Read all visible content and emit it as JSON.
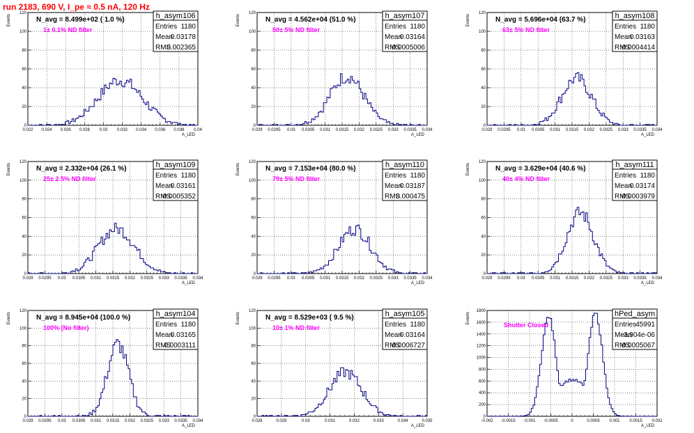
{
  "page_title": "run 2183,   690 V, I_pe ≈ 0.5 nA, 120 Hz",
  "colors": {
    "title": "#ff0000",
    "line": "#000080",
    "filter_label": "#ff00ff",
    "grid": "#000000"
  },
  "chart_data": [
    {
      "type": "bar",
      "name": "h_asym106",
      "navg_label": "N_avg = 8.499e+02 ( 1.0 %)",
      "filter_label": "1± 0.1% ND filter",
      "stats": [
        [
          "Entries",
          "1180"
        ],
        [
          "Mean",
          "0.03178"
        ],
        [
          "RMS",
          "0.002365"
        ]
      ],
      "xlabel": "A_LED",
      "ylabel": "Events",
      "xlim": [
        0.022,
        0.04
      ],
      "ylim": [
        0,
        120
      ],
      "xticks": [
        "0.022",
        "0.024",
        "0.026",
        "0.028",
        "0.03",
        "0.032",
        "0.034",
        "0.036",
        "0.038",
        "0.04"
      ],
      "yticks": [
        "0",
        "20",
        "40",
        "60",
        "80",
        "100",
        "120"
      ],
      "mean": 0.03178,
      "rms": 0.002365,
      "peak": 48,
      "grid": true
    },
    {
      "type": "bar",
      "name": "h_asym107",
      "navg_label": "N_avg = 4.562e+04 (51.0 %)",
      "filter_label": "50± 5% ND filter",
      "stats": [
        [
          "Entries",
          "1180"
        ],
        [
          "Mean",
          "0.03164"
        ],
        [
          "RMS",
          "0.0005006"
        ]
      ],
      "xlabel": "A_LED",
      "ylabel": "Events",
      "xlim": [
        0.029,
        0.034
      ],
      "ylim": [
        0,
        120
      ],
      "xticks": [
        "0.029",
        "0.0295",
        "0.03",
        "0.0305",
        "0.031",
        "0.0315",
        "0.032",
        "0.0325",
        "0.033",
        "0.0335",
        "0.034"
      ],
      "yticks": [
        "0",
        "20",
        "40",
        "60",
        "80",
        "100",
        "120"
      ],
      "mean": 0.03164,
      "rms": 0.0005006,
      "peak": 52,
      "grid": true
    },
    {
      "type": "bar",
      "name": "h_asym108",
      "navg_label": "N_avg = 5.696e+04 (63.7 %)",
      "filter_label": "63± 5% ND filter",
      "stats": [
        [
          "Entries",
          "1180"
        ],
        [
          "Mean",
          "0.03163"
        ],
        [
          "RMS",
          "0.0004414"
        ]
      ],
      "xlabel": "A_LED",
      "ylabel": "Events",
      "xlim": [
        0.029,
        0.034
      ],
      "ylim": [
        0,
        120
      ],
      "xticks": [
        "0.029",
        "0.0295",
        "0.03",
        "0.0305",
        "0.031",
        "0.0315",
        "0.032",
        "0.0325",
        "0.033",
        "0.0335",
        "0.034"
      ],
      "yticks": [
        "0",
        "20",
        "40",
        "60",
        "80",
        "100",
        "120"
      ],
      "mean": 0.03163,
      "rms": 0.0004414,
      "peak": 50,
      "grid": true
    },
    {
      "type": "bar",
      "name": "h_asym109",
      "navg_label": "N_avg = 2.332e+04 (26.1 %)",
      "filter_label": "25± 2.5% ND filter",
      "stats": [
        [
          "Entries",
          "1180"
        ],
        [
          "Mean",
          "0.03161"
        ],
        [
          "RMS",
          "0.0005352"
        ]
      ],
      "xlabel": "A_LED",
      "ylabel": "Events",
      "xlim": [
        0.029,
        0.034
      ],
      "ylim": [
        0,
        120
      ],
      "xticks": [
        "0.029",
        "0.0295",
        "0.03",
        "0.0305",
        "0.031",
        "0.0315",
        "0.032",
        "0.0325",
        "0.033",
        "0.0335",
        "0.034"
      ],
      "yticks": [
        "0",
        "20",
        "40",
        "60",
        "80",
        "100",
        "120"
      ],
      "mean": 0.03161,
      "rms": 0.0005352,
      "peak": 48,
      "grid": true
    },
    {
      "type": "bar",
      "name": "h_asym110",
      "navg_label": "N_avg = 7.153e+04 (80.0 %)",
      "filter_label": "79± 5% ND filter",
      "stats": [
        [
          "Entries",
          "1180"
        ],
        [
          "Mean",
          "0.03187"
        ],
        [
          "RMS",
          "0.000475"
        ]
      ],
      "xlabel": "A_LED",
      "ylabel": "Events",
      "xlim": [
        0.029,
        0.034
      ],
      "ylim": [
        0,
        120
      ],
      "xticks": [
        "0.029",
        "0.0295",
        "0.03",
        "0.0305",
        "0.031",
        "0.0315",
        "0.032",
        "0.0325",
        "0.033",
        "0.0335",
        "0.034"
      ],
      "yticks": [
        "0",
        "20",
        "40",
        "60",
        "80",
        "100",
        "120"
      ],
      "mean": 0.03187,
      "rms": 0.000475,
      "peak": 48,
      "grid": true
    },
    {
      "type": "bar",
      "name": "h_asym111",
      "navg_label": "N_avg = 3.629e+04 (40.6 %)",
      "filter_label": "40± 4% ND filter",
      "stats": [
        [
          "Entries",
          "1180"
        ],
        [
          "Mean",
          "0.03174"
        ],
        [
          "RMS",
          "0.0003979"
        ]
      ],
      "xlabel": "A_LED",
      "ylabel": "Events",
      "xlim": [
        0.029,
        0.034
      ],
      "ylim": [
        0,
        120
      ],
      "xticks": [
        "0.029",
        "0.0295",
        "0.03",
        "0.0305",
        "0.031",
        "0.0315",
        "0.032",
        "0.0325",
        "0.033",
        "0.0335",
        "0.034"
      ],
      "yticks": [
        "0",
        "20",
        "40",
        "60",
        "80",
        "100",
        "120"
      ],
      "mean": 0.03174,
      "rms": 0.0003979,
      "peak": 65,
      "grid": true
    },
    {
      "type": "bar",
      "name": "h_asym104",
      "navg_label": "N_avg = 8.945e+04 (100.0 %)",
      "filter_label": "100% (No filter)",
      "stats": [
        [
          "Entries",
          "1180"
        ],
        [
          "Mean",
          "0.03165"
        ],
        [
          "RMS",
          "0.0003111"
        ]
      ],
      "xlabel": "A_LED",
      "ylabel": "Events",
      "xlim": [
        0.029,
        0.034
      ],
      "ylim": [
        0,
        120
      ],
      "xticks": [
        "0.029",
        "0.0295",
        "0.03",
        "0.0305",
        "0.031",
        "0.0315",
        "0.032",
        "0.0325",
        "0.033",
        "0.0335",
        "0.034"
      ],
      "yticks": [
        "0",
        "20",
        "40",
        "60",
        "80",
        "100",
        "120"
      ],
      "mean": 0.03165,
      "rms": 0.0003111,
      "peak": 82,
      "grid": true
    },
    {
      "type": "bar",
      "name": "h_asym105",
      "navg_label": "N_avg = 8.529e+03 ( 9.5 %)",
      "filter_label": "10± 1% ND filter",
      "stats": [
        [
          "Entries",
          "1180"
        ],
        [
          "Mean",
          "0.03164"
        ],
        [
          "RMS",
          "0.0006727"
        ]
      ],
      "xlabel": "A_LED",
      "ylabel": "Events",
      "xlim": [
        0.028,
        0.035
      ],
      "ylim": [
        0,
        120
      ],
      "xticks": [
        "0.028",
        "0.029",
        "0.03",
        "0.031",
        "0.032",
        "0.033",
        "0.034",
        "0.035"
      ],
      "yticks": [
        "0",
        "20",
        "40",
        "60",
        "80",
        "100",
        "120"
      ],
      "mean": 0.03164,
      "rms": 0.0006727,
      "peak": 50,
      "grid": true
    },
    {
      "type": "bar",
      "name": "hPed_asym",
      "navg_label": "",
      "filter_label": "Shutter Closed",
      "stats": [
        [
          "Entries",
          "45991"
        ],
        [
          "Mean",
          "-3.904e-06"
        ],
        [
          "RMS",
          "0.0005067"
        ]
      ],
      "xlabel": "A_LED",
      "ylabel": "Events",
      "xlim": [
        -0.002,
        0.002
      ],
      "ylim": [
        0,
        1800
      ],
      "xticks": [
        "-0.002",
        "-0.0015",
        "-0.001",
        "-0.0005",
        "0",
        "0.0005",
        "0.001",
        "0.0015",
        "0.002"
      ],
      "yticks": [
        "0",
        "200",
        "400",
        "600",
        "800",
        "1000",
        "1200",
        "1400",
        "1600",
        "1800"
      ],
      "mean": -3.904e-06,
      "rms": 0.0005067,
      "peak": 1700,
      "grid": true,
      "bimodal": [
        [
          -0.00055,
          1700,
          0.00017
        ],
        [
          0.00055,
          1750,
          0.00017
        ]
      ],
      "valley": 620
    }
  ]
}
